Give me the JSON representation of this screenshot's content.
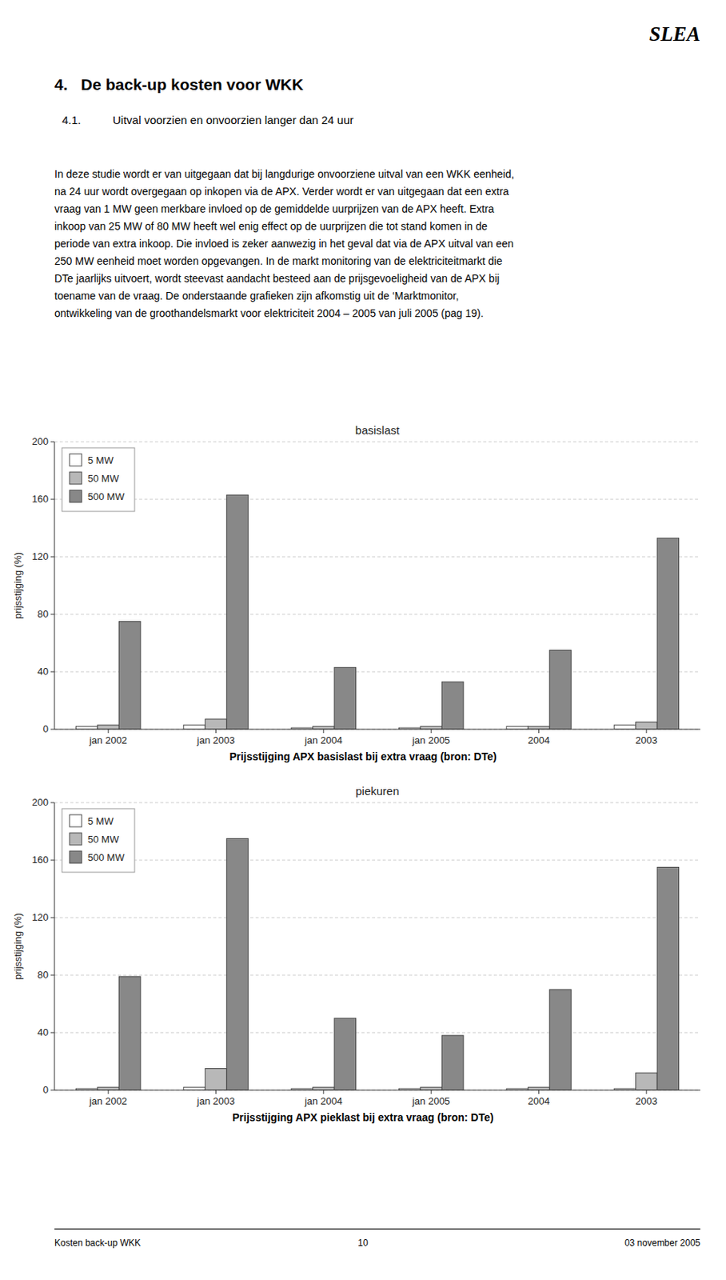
{
  "header": "SLEA",
  "title": "4.   De back-up kosten voor WKK",
  "subtitle_number": "4.1.",
  "subtitle": "Uitval voorzien en onvoorzien langer dan 24 uur",
  "body": [
    "In deze studie wordt er van uitgegaan dat bij langdurige onvoorziene uitval van een WKK eenheid,",
    "na 24 uur wordt overgegaan op inkopen via de APX. Verder wordt er van uitgegaan dat een extra",
    "vraag van 1 MW geen merkbare invloed op de gemiddelde uurprijzen van de APX heeft. Extra",
    "inkoop van 25 MW of 80 MW heeft wel enig effect op de uurprijzen die tot stand komen in de",
    "periode van extra inkoop. Die invloed is zeker aanwezig in het geval dat via de APX uitval van een",
    "250 MW eenheid moet worden opgevangen. In de markt monitoring van de elektriciteitmarkt die",
    "DTe jaarlijks uitvoert, wordt steevast aandacht besteed aan de prijsgevoeligheid van de APX bij",
    "toename van de vraag. De onderstaande grafieken zijn afkomstig uit de ‘Marktmonitor,",
    "ontwikkeling van de groothandelsmarkt voor elektriciteit 2004 – 2005 van juli 2005 (pag 19)."
  ],
  "footer_left": "Kosten back-up WKK",
  "footer_center": "10",
  "footer_right": "03 november 2005",
  "chart_data": [
    {
      "type": "bar",
      "title": "basislast",
      "caption": "Prijsstijging APX basislast bij extra vraag (bron: DTe)",
      "y_label": "prijsstijging (%)",
      "categories": [
        "jan 2002",
        "jan 2003",
        "jan 2004",
        "jan 2005",
        "2004",
        "2003"
      ],
      "series": [
        {
          "name": "5 MW",
          "color": "#ffffff",
          "values": [
            2,
            3,
            1,
            1,
            2,
            3
          ]
        },
        {
          "name": "50 MW",
          "color": "#b8b8b8",
          "values": [
            3,
            7,
            2,
            2,
            2,
            5
          ]
        },
        {
          "name": "500 MW",
          "color": "#888888",
          "values": [
            75,
            163,
            43,
            33,
            55,
            133
          ]
        }
      ],
      "ylim": [
        0,
        200
      ],
      "yticks": [
        0,
        40,
        80,
        120,
        160,
        200
      ],
      "grid": true,
      "legend": "upper-left"
    },
    {
      "type": "bar",
      "title": "piekuren",
      "caption": "Prijsstijging APX pieklast bij extra vraag (bron: DTe)",
      "y_label": "prijsstijging (%)",
      "categories": [
        "jan 2002",
        "jan 2003",
        "jan 2004",
        "jan 2005",
        "2004",
        "2003"
      ],
      "series": [
        {
          "name": "5 MW",
          "color": "#ffffff",
          "values": [
            1,
            2,
            1,
            1,
            1,
            1
          ]
        },
        {
          "name": "50 MW",
          "color": "#b8b8b8",
          "values": [
            2,
            15,
            2,
            2,
            2,
            12
          ]
        },
        {
          "name": "500 MW",
          "color": "#888888",
          "values": [
            79,
            175,
            50,
            38,
            70,
            155
          ]
        }
      ],
      "ylim": [
        0,
        200
      ],
      "yticks": [
        0,
        40,
        80,
        120,
        160,
        200
      ],
      "grid": true,
      "legend": "upper-left"
    }
  ]
}
